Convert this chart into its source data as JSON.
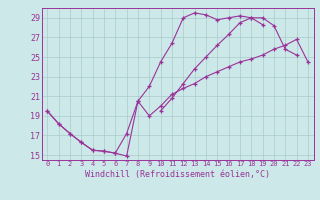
{
  "xlabel": "Windchill (Refroidissement éolien,°C)",
  "background_color": "#cce8e8",
  "grid_color": "#aacccc",
  "line_color": "#993399",
  "hours": [
    0,
    1,
    2,
    3,
    4,
    5,
    6,
    7,
    8,
    9,
    10,
    11,
    12,
    13,
    14,
    15,
    16,
    17,
    18,
    19,
    20,
    21,
    22,
    23
  ],
  "line1": [
    19.5,
    18.2,
    17.2,
    16.3,
    15.5,
    15.4,
    15.2,
    14.9,
    20.5,
    22.0,
    24.5,
    26.4,
    29.0,
    29.5,
    29.3,
    28.8,
    29.0,
    29.2,
    29.0,
    28.3,
    null,
    null,
    null,
    null
  ],
  "line2": [
    19.5,
    18.2,
    17.2,
    16.3,
    15.5,
    15.4,
    15.2,
    17.2,
    20.5,
    19.0,
    20.0,
    21.2,
    21.8,
    22.3,
    23.0,
    23.5,
    24.0,
    24.5,
    24.8,
    25.2,
    25.8,
    26.2,
    26.8,
    24.5
  ],
  "line3": [
    null,
    null,
    null,
    null,
    null,
    null,
    null,
    null,
    null,
    null,
    19.5,
    20.8,
    22.3,
    23.8,
    25.0,
    26.2,
    27.3,
    28.5,
    29.0,
    29.0,
    28.2,
    25.8,
    25.2,
    null
  ],
  "xlim": [
    0,
    23
  ],
  "ylim": [
    14.5,
    30
  ],
  "yticks": [
    15,
    17,
    19,
    21,
    23,
    25,
    27,
    29
  ],
  "xticks": [
    0,
    1,
    2,
    3,
    4,
    5,
    6,
    7,
    8,
    9,
    10,
    11,
    12,
    13,
    14,
    15,
    16,
    17,
    18,
    19,
    20,
    21,
    22,
    23
  ]
}
